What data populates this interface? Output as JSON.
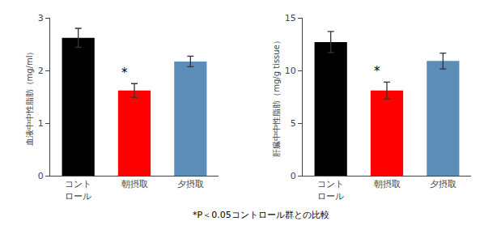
{
  "chart_data": [
    {
      "type": "bar",
      "ylabel": "血液中中性脂肪（mg/ml）",
      "categories": [
        "コント\nロール",
        "朝摂取",
        "夕摂取"
      ],
      "values": [
        2.62,
        1.62,
        2.17
      ],
      "errors": [
        0.18,
        0.13,
        0.1
      ],
      "colors": [
        "#000000",
        "#ff0000",
        "#5b8db8"
      ],
      "ylim": [
        0,
        3
      ],
      "yticks": [
        0,
        1,
        2,
        3
      ],
      "grid": false,
      "annotations": [
        {
          "text": "*",
          "category": "朝摂取"
        }
      ]
    },
    {
      "type": "bar",
      "ylabel": "肝臓中中性脂肪（mg/g tissue）",
      "categories": [
        "コント\nロール",
        "朝摂取",
        "夕摂取"
      ],
      "values": [
        12.7,
        8.1,
        10.9
      ],
      "errors": [
        1.0,
        0.8,
        0.75
      ],
      "colors": [
        "#000000",
        "#ff0000",
        "#5b8db8"
      ],
      "ylim": [
        0,
        15
      ],
      "yticks": [
        0,
        5,
        10,
        15
      ],
      "grid": false,
      "annotations": [
        {
          "text": "*",
          "category": "朝摂取"
        }
      ]
    }
  ],
  "footnote": "*Ρ＜0.05コントロール群との比較"
}
